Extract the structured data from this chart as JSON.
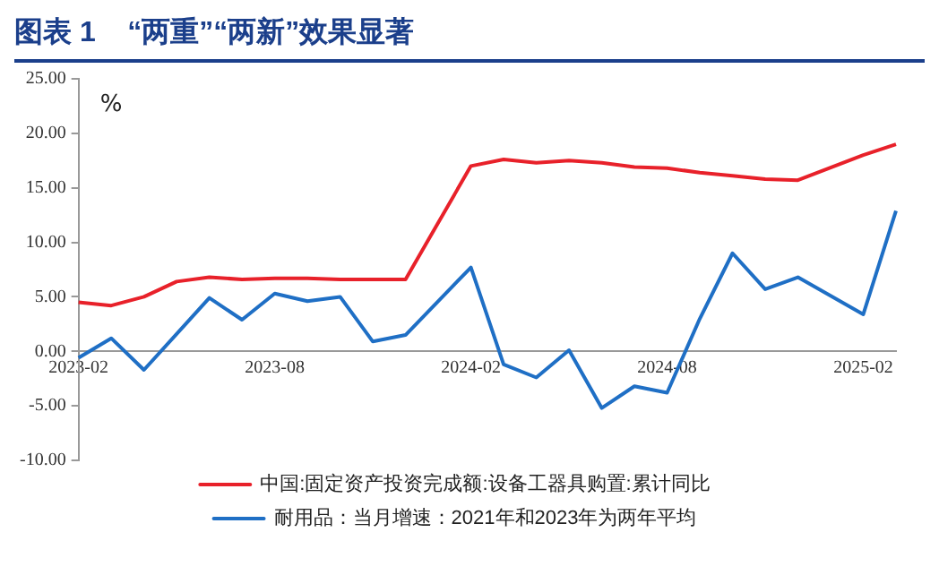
{
  "chart_data": {
    "type": "line",
    "title": "图表 1    “两重”“两新”效果显著",
    "ylabel": "%",
    "categories": [
      "2023-02",
      null,
      null,
      null,
      null,
      null,
      "2023-08",
      null,
      null,
      null,
      null,
      null,
      "2024-02",
      null,
      null,
      null,
      null,
      null,
      "2024-08",
      null,
      null,
      null,
      null,
      null,
      "2025-02",
      null
    ],
    "series": [
      {
        "name": "中国:固定资产投资完成额:设备工器具购置:累计同比",
        "color": "#e8212a",
        "values": [
          4.5,
          4.2,
          5.0,
          6.4,
          6.8,
          6.6,
          6.7,
          6.7,
          6.6,
          6.6,
          6.6,
          null,
          17.0,
          17.6,
          17.3,
          17.5,
          17.3,
          16.9,
          16.8,
          16.4,
          16.1,
          15.8,
          15.7,
          null,
          18.0,
          19.0
        ]
      },
      {
        "name": "耐用品：当月增速：2021年和2023年为两年平均",
        "color": "#1f6fc5",
        "values": [
          -0.6,
          1.2,
          -1.7,
          1.6,
          4.9,
          2.9,
          5.3,
          4.6,
          5.0,
          0.9,
          1.5,
          null,
          7.7,
          -1.2,
          -2.4,
          0.1,
          -5.2,
          -3.2,
          -3.8,
          3.0,
          9.0,
          5.7,
          6.8,
          null,
          3.4,
          12.9
        ]
      }
    ],
    "ylim": [
      -10,
      25
    ],
    "yticks": [
      {
        "value": -10,
        "label": "-10.00"
      },
      {
        "value": -5,
        "label": "-5.00"
      },
      {
        "value": 0,
        "label": "0.00"
      },
      {
        "value": 5,
        "label": "5.00"
      },
      {
        "value": 10,
        "label": "10.00"
      },
      {
        "value": 15,
        "label": "15.00"
      },
      {
        "value": 20,
        "label": "20.00"
      },
      {
        "value": 25,
        "label": "25.00"
      }
    ],
    "grid": false,
    "legend": "bottom",
    "marker": "none",
    "line_style": "solid"
  }
}
